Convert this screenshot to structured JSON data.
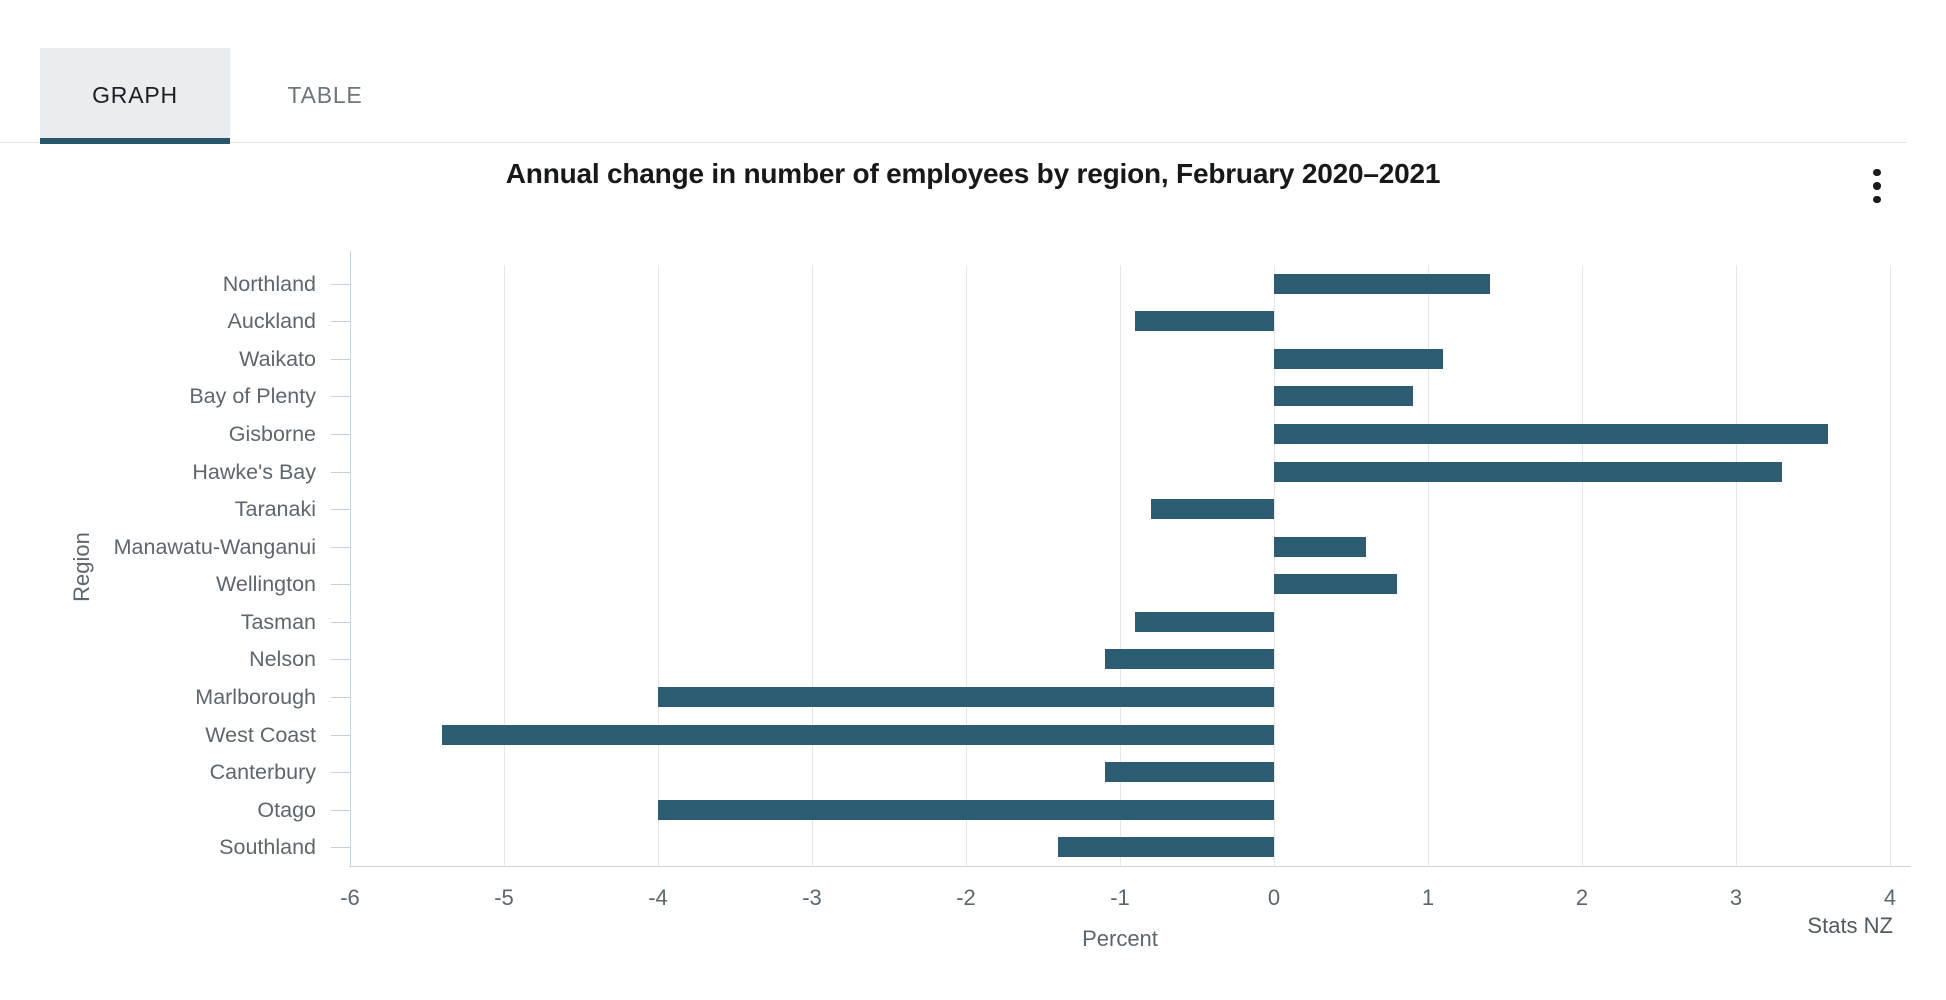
{
  "tabs": {
    "graph_label": "GRAPH",
    "table_label": "TABLE"
  },
  "menu": {
    "kebab_icon": "vertical-ellipsis"
  },
  "colors": {
    "bar": "#2b5c71",
    "active_tab_underline": "#27566b",
    "active_tab_background": "#e9edf0",
    "gridline": "#e4e6e8",
    "axis_label_gray": "#5d666e"
  },
  "chart_data": {
    "type": "bar",
    "orientation": "horizontal",
    "title": "Annual change in number of employees by region, February 2020–2021",
    "xlabel": "Percent",
    "ylabel": "Region",
    "source": "Stats NZ",
    "categories": [
      "Northland",
      "Auckland",
      "Waikato",
      "Bay of Plenty",
      "Gisborne",
      "Hawke's Bay",
      "Taranaki",
      "Manawatu-Wanganui",
      "Wellington",
      "Tasman",
      "Nelson",
      "Marlborough",
      "West Coast",
      "Canterbury",
      "Otago",
      "Southland"
    ],
    "values": [
      1.4,
      -0.9,
      1.1,
      0.9,
      3.6,
      3.3,
      -0.8,
      0.6,
      0.8,
      -0.9,
      -1.1,
      -4.0,
      -5.4,
      -1.1,
      -4.0,
      -1.4
    ],
    "xlim": [
      -6,
      4
    ],
    "xticks": [
      -6,
      -5,
      -4,
      -3,
      -2,
      -1,
      0,
      1,
      2,
      3,
      4
    ],
    "grid": "vertical-only",
    "legend": "none"
  }
}
